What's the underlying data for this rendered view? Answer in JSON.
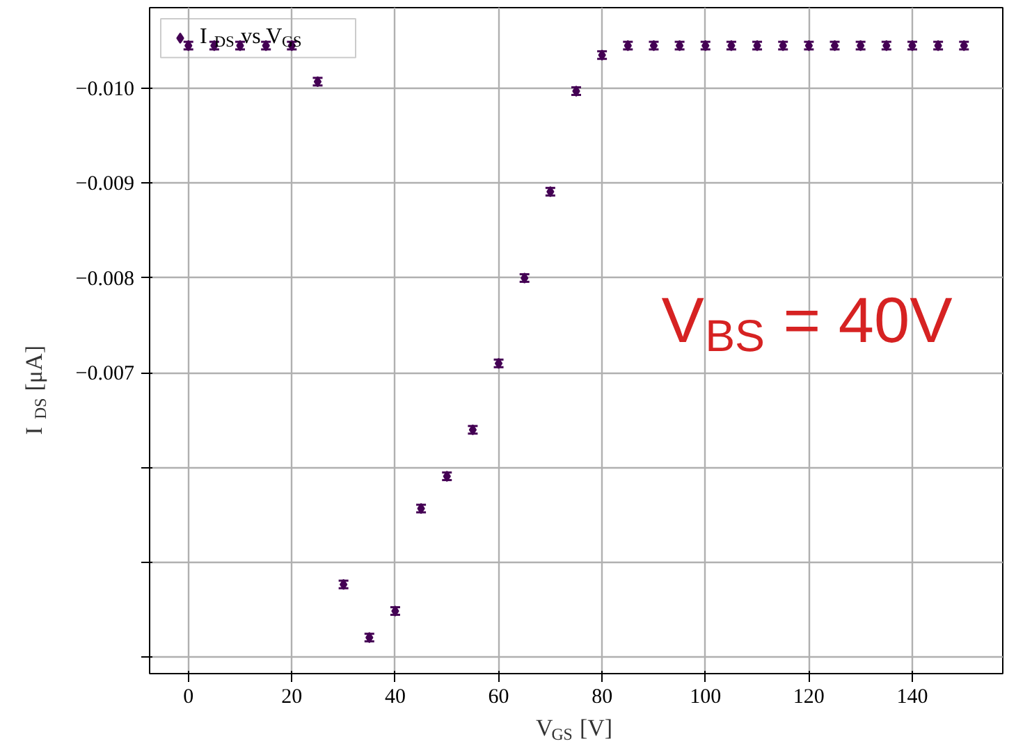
{
  "chart_data": {
    "type": "scatter",
    "xlabel": "V$_{GS}$ [V]",
    "ylabel": "I$_{DS}$ [μA]",
    "x": [
      0,
      5,
      10,
      15,
      20,
      25,
      30,
      35,
      40,
      45,
      50,
      55,
      60,
      65,
      70,
      75,
      80,
      85,
      90,
      95,
      100,
      105,
      110,
      115,
      120,
      125,
      130,
      135,
      140,
      145,
      150
    ],
    "series": [
      {
        "name": "I$_{DS}$ vs V$_{GS}$",
        "color": "#440154",
        "values": [
          -0.01045,
          -0.01045,
          -0.01045,
          -0.01045,
          -0.01045,
          -0.01007,
          -0.00477,
          -0.00421,
          -0.00449,
          -0.00557,
          -0.00591,
          -0.0064,
          -0.0071,
          -0.008,
          -0.00891,
          -0.00997,
          -0.01035,
          -0.01045,
          -0.01045,
          -0.01045,
          -0.01045,
          -0.01045,
          -0.01045,
          -0.01045,
          -0.01045,
          -0.01045,
          -0.01045,
          -0.01045,
          -0.01045,
          -0.01045,
          -0.01045
        ],
        "errors": [
          4e-05,
          4e-05,
          4e-05,
          4e-05,
          4e-05,
          4e-05,
          4e-05,
          4e-05,
          4e-05,
          4e-05,
          4e-05,
          4e-05,
          4e-05,
          4e-05,
          4e-05,
          4e-05,
          4e-05,
          4e-05,
          4e-05,
          4e-05,
          4e-05,
          4e-05,
          4e-05,
          4e-05,
          4e-05,
          4e-05,
          4e-05,
          4e-05,
          4e-05,
          4e-05,
          4e-05
        ]
      }
    ],
    "xlim": [
      -7.5,
      157.5
    ],
    "ylim": [
      -0.00383,
      -0.01085
    ],
    "xticks": [
      0,
      20,
      40,
      60,
      80,
      100,
      120,
      140
    ],
    "yticks": [
      {
        "value": -0.01,
        "label": "−0.010"
      },
      {
        "value": -0.009,
        "label": "−0.009"
      },
      {
        "value": -0.008,
        "label": "−0.008"
      },
      {
        "value": -0.007,
        "label": "−0.007"
      },
      {
        "value": -0.006,
        "label": null
      },
      {
        "value": -0.005,
        "label": null
      },
      {
        "value": -0.004,
        "label": null
      }
    ],
    "grid": true,
    "legend": "top left",
    "marker": "diamond",
    "annotations": [
      "V$_{BS}$ = 40V"
    ]
  }
}
